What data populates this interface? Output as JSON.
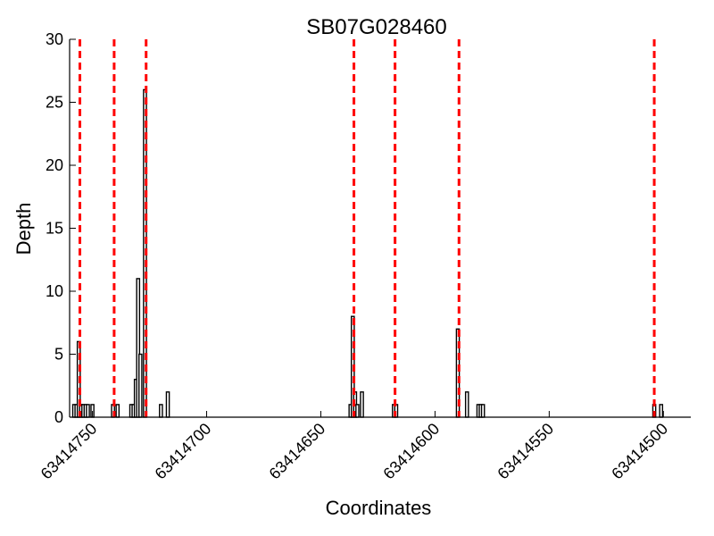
{
  "chart_data": {
    "type": "bar",
    "title": "SB07G028460",
    "xlabel": "Coordinates",
    "ylabel": "Depth",
    "x_reversed": true,
    "xlim": [
      63414760,
      63414488
    ],
    "ylim": [
      0,
      30
    ],
    "x_ticks": [
      63414750,
      63414700,
      63414650,
      63414600,
      63414550,
      63414500
    ],
    "x_tick_labels": [
      "63414750",
      "63414700",
      "63414650",
      "63414600",
      "63414550",
      "63414500"
    ],
    "y_ticks": [
      0,
      5,
      10,
      15,
      20,
      25,
      30
    ],
    "y_tick_labels": [
      "0",
      "5",
      "10",
      "15",
      "20",
      "25",
      "30"
    ],
    "grid": false,
    "bar_color": "#000000",
    "bar_fill": "#ffffff",
    "marker_color": "#ff0000",
    "bars": [
      {
        "x": 63414758,
        "y": 1
      },
      {
        "x": 63414757,
        "y": 1
      },
      {
        "x": 63414756,
        "y": 6
      },
      {
        "x": 63414755,
        "y": 1
      },
      {
        "x": 63414754,
        "y": 1
      },
      {
        "x": 63414753,
        "y": 1
      },
      {
        "x": 63414752,
        "y": 1
      },
      {
        "x": 63414750,
        "y": 1
      },
      {
        "x": 63414741,
        "y": 1
      },
      {
        "x": 63414739,
        "y": 1
      },
      {
        "x": 63414733,
        "y": 1
      },
      {
        "x": 63414732,
        "y": 1
      },
      {
        "x": 63414731,
        "y": 3
      },
      {
        "x": 63414730,
        "y": 11
      },
      {
        "x": 63414729,
        "y": 5
      },
      {
        "x": 63414727,
        "y": 26
      },
      {
        "x": 63414720,
        "y": 1
      },
      {
        "x": 63414717,
        "y": 2
      },
      {
        "x": 63414637,
        "y": 1
      },
      {
        "x": 63414636,
        "y": 8
      },
      {
        "x": 63414635,
        "y": 2
      },
      {
        "x": 63414634,
        "y": 1
      },
      {
        "x": 63414632,
        "y": 2
      },
      {
        "x": 63414618,
        "y": 1
      },
      {
        "x": 63414617,
        "y": 1
      },
      {
        "x": 63414590,
        "y": 7
      },
      {
        "x": 63414586,
        "y": 2
      },
      {
        "x": 63414581,
        "y": 1
      },
      {
        "x": 63414580,
        "y": 1
      },
      {
        "x": 63414579,
        "y": 1
      },
      {
        "x": 63414504,
        "y": 1
      },
      {
        "x": 63414501,
        "y": 1
      }
    ],
    "markers": [
      63414755.5,
      63414740.5,
      63414726.5,
      63414635.5,
      63414617.5,
      63414589.5,
      63414504
    ]
  }
}
